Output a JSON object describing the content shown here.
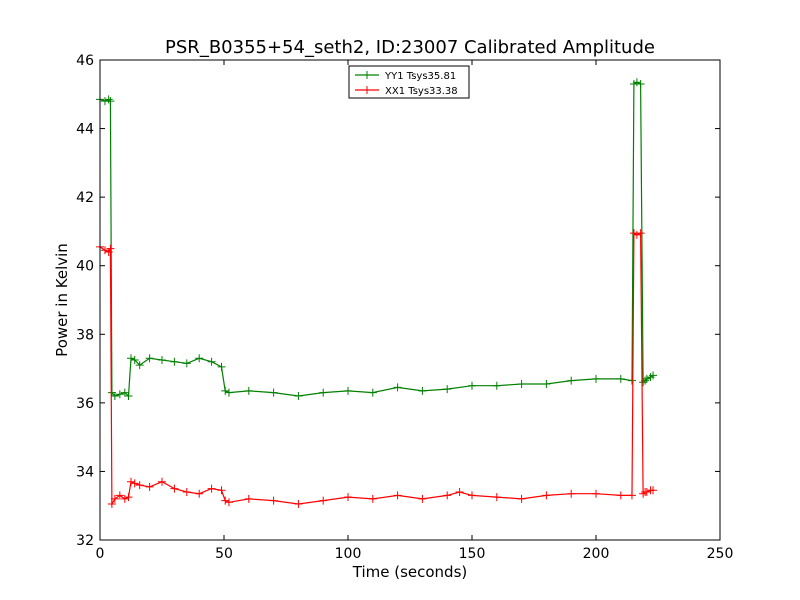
{
  "chart_data": {
    "type": "line",
    "title": "PSR_B0355+54_seth2, ID:23007 Calibrated Amplitude",
    "xlabel": "Time (seconds)",
    "ylabel": "Power in Kelvin",
    "xlim": [
      0,
      250
    ],
    "ylim": [
      32,
      46
    ],
    "xticks": [
      0,
      50,
      100,
      150,
      200,
      250
    ],
    "yticks": [
      32,
      34,
      36,
      38,
      40,
      42,
      44,
      46
    ],
    "xtick_labels": [
      "0",
      "50",
      "100",
      "150",
      "200",
      "250"
    ],
    "ytick_labels": [
      "32",
      "34",
      "36",
      "38",
      "40",
      "42",
      "44",
      "46"
    ],
    "grid": false,
    "legend": {
      "placement": "top-center"
    },
    "series": [
      {
        "name": "YY1 Tsys35.81",
        "color": "#008000",
        "x": [
          0,
          2,
          3.5,
          4.2,
          4.8,
          6,
          8,
          10,
          11.5,
          12.5,
          14,
          16,
          20,
          25,
          30,
          35,
          40,
          45,
          49,
          50.5,
          52,
          60,
          70,
          80,
          90,
          100,
          110,
          120,
          130,
          140,
          150,
          160,
          170,
          180,
          190,
          200,
          210,
          214.5,
          215.3,
          216.5,
          218,
          219,
          219.8,
          220.5,
          222,
          223
        ],
        "y": [
          44.85,
          44.8,
          44.85,
          44.8,
          36.3,
          36.2,
          36.25,
          36.3,
          36.2,
          37.3,
          37.25,
          37.1,
          37.3,
          37.25,
          37.2,
          37.15,
          37.3,
          37.2,
          37.05,
          36.35,
          36.3,
          36.35,
          36.3,
          36.2,
          36.3,
          36.35,
          36.3,
          36.45,
          36.35,
          36.4,
          36.5,
          36.5,
          36.55,
          36.55,
          36.65,
          36.7,
          36.7,
          36.65,
          45.3,
          45.35,
          45.3,
          36.6,
          36.65,
          36.7,
          36.75,
          36.8
        ]
      },
      {
        "name": "XX1 Tsys33.38",
        "color": "#ff0000",
        "x": [
          0,
          2,
          3.5,
          4.2,
          4.8,
          6,
          8,
          10,
          11.5,
          12.5,
          14,
          16,
          20,
          25,
          30,
          35,
          40,
          45,
          49,
          50.5,
          52,
          60,
          70,
          80,
          90,
          100,
          110,
          120,
          130,
          140,
          145,
          150,
          160,
          170,
          180,
          190,
          200,
          210,
          214.5,
          215.3,
          216.5,
          218,
          219,
          219.8,
          220.5,
          222,
          223
        ],
        "y": [
          40.55,
          40.45,
          40.4,
          40.5,
          33.05,
          33.2,
          33.3,
          33.2,
          33.25,
          33.7,
          33.65,
          33.6,
          33.55,
          33.7,
          33.5,
          33.4,
          33.35,
          33.5,
          33.45,
          33.15,
          33.1,
          33.2,
          33.15,
          33.05,
          33.15,
          33.25,
          33.2,
          33.3,
          33.2,
          33.3,
          33.4,
          33.3,
          33.25,
          33.2,
          33.3,
          33.35,
          33.35,
          33.3,
          33.3,
          40.95,
          40.9,
          40.95,
          33.35,
          33.4,
          33.4,
          33.45,
          33.45
        ]
      }
    ]
  }
}
